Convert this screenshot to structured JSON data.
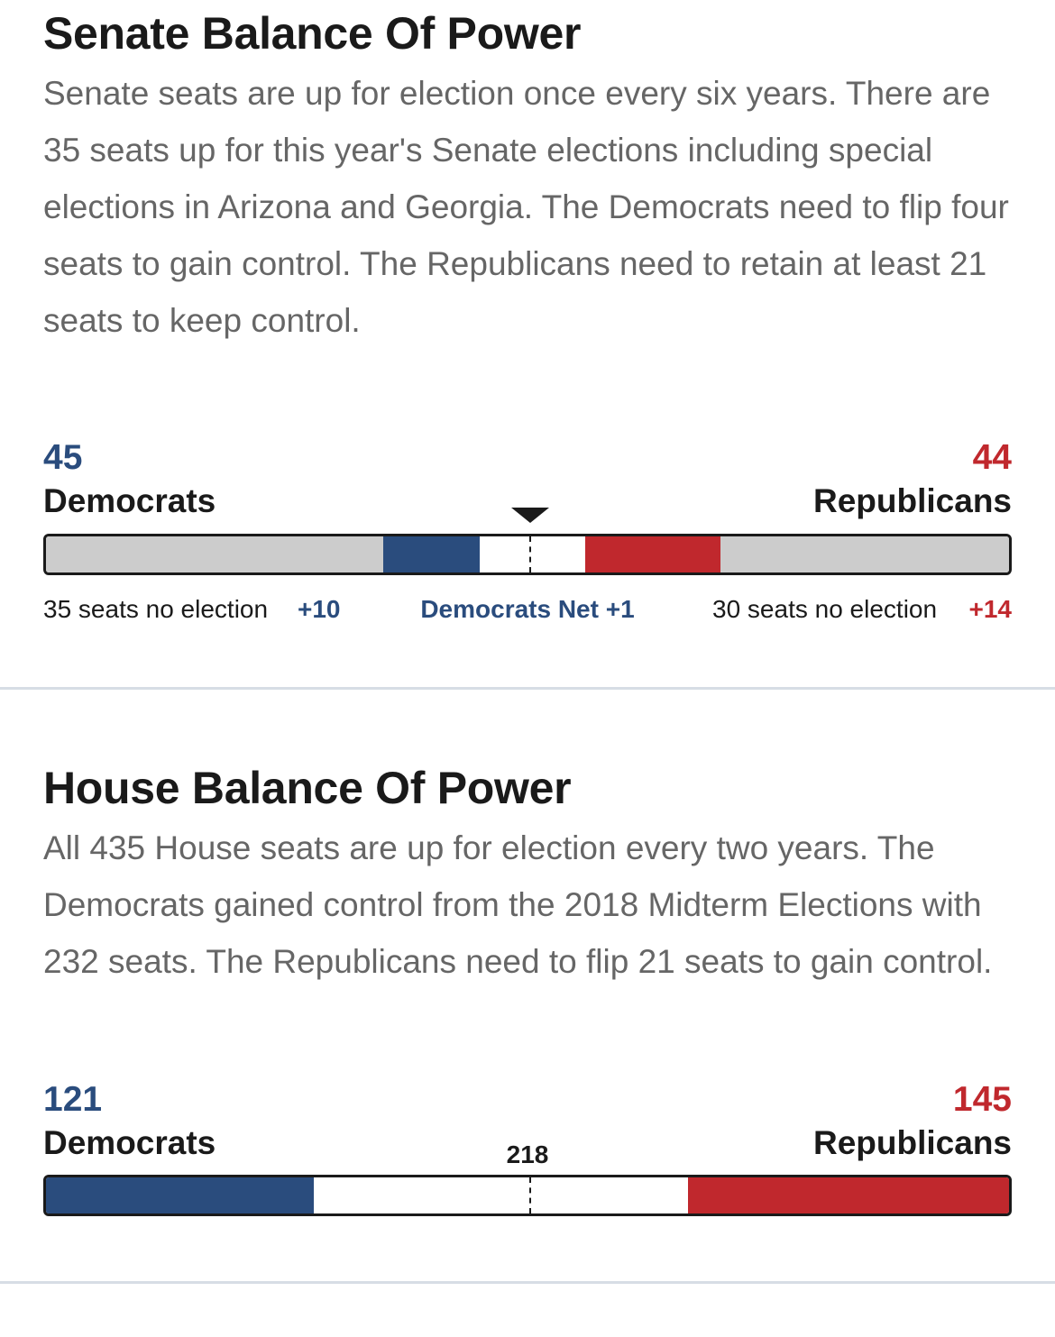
{
  "colors": {
    "democrat": "#2a4c7d",
    "republican": "#c0282d",
    "no_election": "#cccccc",
    "undecided": "#ffffff"
  },
  "senate": {
    "title": "Senate Balance Of Power",
    "description": "Senate seats are up for election once every six years. There are 35 seats up for this year's Senate elections including special elections in Arizona and Georgia. The Democrats need to flip four seats to gain control. The Republicans need to retain at least 21 seats to keep control.",
    "dem_total": "45",
    "dem_label": "Democrats",
    "rep_total": "44",
    "rep_label": "Republicans",
    "dem_no_election_text": "35 seats no election",
    "dem_won_text": "+10",
    "net_text": "Democrats Net +1",
    "rep_no_election_text": "30 seats no election",
    "rep_won_text": "+14"
  },
  "house": {
    "title": "House Balance Of Power",
    "description": "All 435 House seats are up for election every two years. The Democrats gained control from the 2018 Midterm Elections with 232 seats. The Republicans need to flip 21 seats to gain control.",
    "dem_total": "121",
    "dem_label": "Democrats",
    "rep_total": "145",
    "rep_label": "Republicans",
    "majority_text": "218"
  },
  "chart_data": [
    {
      "type": "bar",
      "chart": "senate",
      "orientation": "horizontal-stacked",
      "total_seats": 100,
      "segments": [
        {
          "name": "35 seats no election",
          "party": "democrat",
          "value": 35,
          "color": "#cccccc"
        },
        {
          "name": "+10",
          "party": "democrat",
          "value": 10,
          "color": "#2a4c7d"
        },
        {
          "name": "undecided",
          "value": 11,
          "color": "#ffffff"
        },
        {
          "name": "+14",
          "party": "republican",
          "value": 14,
          "color": "#c0282d"
        },
        {
          "name": "30 seats no election",
          "party": "republican",
          "value": 30,
          "color": "#cccccc"
        }
      ],
      "dem_total": 45,
      "rep_total": 44,
      "majority_marker": 50
    },
    {
      "type": "bar",
      "chart": "house",
      "orientation": "horizontal-stacked",
      "total_seats": 435,
      "segments": [
        {
          "name": "Democrats",
          "party": "democrat",
          "value": 121,
          "color": "#2a4c7d"
        },
        {
          "name": "undecided",
          "value": 169,
          "color": "#ffffff"
        },
        {
          "name": "Republicans",
          "party": "republican",
          "value": 145,
          "color": "#c0282d"
        }
      ],
      "dem_total": 121,
      "rep_total": 145,
      "majority_marker": 218
    }
  ]
}
